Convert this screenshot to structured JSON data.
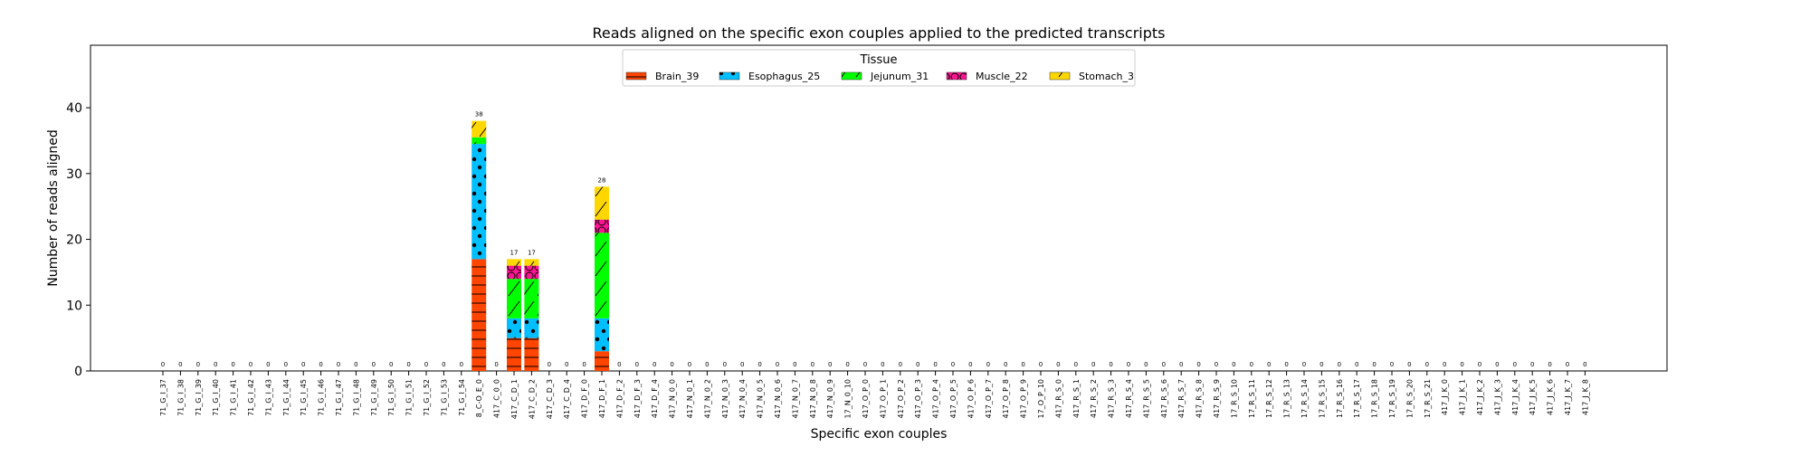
{
  "chart_data": {
    "type": "bar",
    "stacked": true,
    "title": "Reads aligned on the specific exon couples applied to the predicted transcripts",
    "xlabel": "Specific exon couples",
    "ylabel": "Number of reads aligned",
    "ylim": [
      0,
      49.5
    ],
    "yticks": [
      0,
      10,
      20,
      30,
      40
    ],
    "legend": {
      "title": "Tissue",
      "placement": "top-center"
    },
    "categories": [
      "71_G_I_37",
      "71_G_I_38",
      "71_G_I_39",
      "71_G_I_40",
      "71_G_I_41",
      "71_G_I_42",
      "71_G_I_43",
      "71_G_I_44",
      "71_G_I_45",
      "71_G_I_46",
      "71_G_I_47",
      "71_G_I_48",
      "71_G_I_49",
      "71_G_I_50",
      "71_G_I_51",
      "71_G_I_52",
      "71_G_I_53",
      "71_G_I_54",
      "8_C-O_E_0",
      "417_C_0_0",
      "417_C_D_1",
      "417_C_D_2",
      "417_C_D_3",
      "417_C_D_4",
      "417_D_F_0",
      "417_D_F_1",
      "417_D_F_2",
      "417_D_F_3",
      "417_D_F_4",
      "417_N_0_0",
      "417_N_0_1",
      "417_N_0_2",
      "417_N_0_3",
      "417_N_0_4",
      "417_N_0_5",
      "417_N_0_6",
      "417_N_0_7",
      "417_N_0_8",
      "417_N_0_9",
      "17_N_0_10",
      "417_O_P_0",
      "417_O_P_1",
      "417_O_P_2",
      "417_O_P_3",
      "417_O_P_4",
      "417_O_P_5",
      "417_O_P_6",
      "417_O_P_7",
      "417_O_P_8",
      "417_O_P_9",
      "17_O_P_10",
      "417_R_S_0",
      "417_R_S_1",
      "417_R_S_2",
      "417_R_S_3",
      "417_R_S_4",
      "417_R_S_5",
      "417_R_S_6",
      "417_R_S_7",
      "417_R_S_8",
      "417_R_S_9",
      "17_R_S_10",
      "17_R_S_11",
      "17_R_S_12",
      "17_R_S_13",
      "17_R_S_14",
      "17_R_S_15",
      "17_R_S_16",
      "17_R_S_17",
      "17_R_S_18",
      "17_R_S_19",
      "17_R_S_20",
      "17_R_S_21",
      "417_J_K_0",
      "417_J_K_1",
      "417_J_K_2",
      "417_J_K_3",
      "417_J_K_4",
      "417_J_K_5",
      "417_J_K_6",
      "417_J_K_7",
      "417_J_K_8"
    ],
    "totals": [
      0,
      0,
      0,
      0,
      0,
      0,
      0,
      0,
      0,
      0,
      0,
      0,
      0,
      0,
      0,
      0,
      0,
      0,
      38,
      0,
      17,
      17,
      0,
      0,
      0,
      28,
      0,
      0,
      0,
      0,
      0,
      0,
      0,
      0,
      0,
      0,
      0,
      0,
      0,
      0,
      0,
      0,
      0,
      0,
      0,
      0,
      0,
      0,
      0,
      0,
      0,
      0,
      0,
      0,
      0,
      0,
      0,
      0,
      0,
      0,
      0,
      0,
      0,
      0,
      0,
      0,
      0,
      0,
      0,
      0,
      0,
      0,
      0,
      0,
      0,
      0,
      0,
      0,
      0,
      0,
      0,
      0
    ],
    "series": [
      {
        "name": "Brain_39",
        "color": "#ff4500",
        "pattern": "horizontal-lines",
        "values": [
          0,
          0,
          0,
          0,
          0,
          0,
          0,
          0,
          0,
          0,
          0,
          0,
          0,
          0,
          0,
          0,
          0,
          0,
          17,
          0,
          5,
          5,
          0,
          0,
          0,
          3,
          0,
          0,
          0,
          0,
          0,
          0,
          0,
          0,
          0,
          0,
          0,
          0,
          0,
          0,
          0,
          0,
          0,
          0,
          0,
          0,
          0,
          0,
          0,
          0,
          0,
          0,
          0,
          0,
          0,
          0,
          0,
          0,
          0,
          0,
          0,
          0,
          0,
          0,
          0,
          0,
          0,
          0,
          0,
          0,
          0,
          0,
          0,
          0,
          0,
          0,
          0,
          0,
          0,
          0,
          0,
          0
        ]
      },
      {
        "name": "Esophagus_25",
        "color": "#00bfff",
        "pattern": "dots",
        "values": [
          0,
          0,
          0,
          0,
          0,
          0,
          0,
          0,
          0,
          0,
          0,
          0,
          0,
          0,
          0,
          0,
          0,
          0,
          17.5,
          0,
          3,
          3,
          0,
          0,
          0,
          5,
          0,
          0,
          0,
          0,
          0,
          0,
          0,
          0,
          0,
          0,
          0,
          0,
          0,
          0,
          0,
          0,
          0,
          0,
          0,
          0,
          0,
          0,
          0,
          0,
          0,
          0,
          0,
          0,
          0,
          0,
          0,
          0,
          0,
          0,
          0,
          0,
          0,
          0,
          0,
          0,
          0,
          0,
          0,
          0,
          0,
          0,
          0,
          0,
          0,
          0,
          0,
          0,
          0,
          0,
          0,
          0
        ]
      },
      {
        "name": "Jejunum_31",
        "color": "#00ff00",
        "pattern": "diagonal",
        "values": [
          0,
          0,
          0,
          0,
          0,
          0,
          0,
          0,
          0,
          0,
          0,
          0,
          0,
          0,
          0,
          0,
          0,
          0,
          1,
          0,
          6,
          6,
          0,
          0,
          0,
          13,
          0,
          0,
          0,
          0,
          0,
          0,
          0,
          0,
          0,
          0,
          0,
          0,
          0,
          0,
          0,
          0,
          0,
          0,
          0,
          0,
          0,
          0,
          0,
          0,
          0,
          0,
          0,
          0,
          0,
          0,
          0,
          0,
          0,
          0,
          0,
          0,
          0,
          0,
          0,
          0,
          0,
          0,
          0,
          0,
          0,
          0,
          0,
          0,
          0,
          0,
          0,
          0,
          0,
          0,
          0,
          0
        ]
      },
      {
        "name": "Muscle_22",
        "color": "#ff1493",
        "pattern": "circles",
        "values": [
          0,
          0,
          0,
          0,
          0,
          0,
          0,
          0,
          0,
          0,
          0,
          0,
          0,
          0,
          0,
          0,
          0,
          0,
          0,
          0,
          2,
          2,
          0,
          0,
          0,
          2,
          0,
          0,
          0,
          0,
          0,
          0,
          0,
          0,
          0,
          0,
          0,
          0,
          0,
          0,
          0,
          0,
          0,
          0,
          0,
          0,
          0,
          0,
          0,
          0,
          0,
          0,
          0,
          0,
          0,
          0,
          0,
          0,
          0,
          0,
          0,
          0,
          0,
          0,
          0,
          0,
          0,
          0,
          0,
          0,
          0,
          0,
          0,
          0,
          0,
          0,
          0,
          0,
          0,
          0,
          0,
          0
        ]
      },
      {
        "name": "Stomach_3",
        "color": "#ffd700",
        "pattern": "diagonal",
        "values": [
          0,
          0,
          0,
          0,
          0,
          0,
          0,
          0,
          0,
          0,
          0,
          0,
          0,
          0,
          0,
          0,
          0,
          0,
          2.5,
          0,
          1,
          1,
          0,
          0,
          0,
          5,
          0,
          0,
          0,
          0,
          0,
          0,
          0,
          0,
          0,
          0,
          0,
          0,
          0,
          0,
          0,
          0,
          0,
          0,
          0,
          0,
          0,
          0,
          0,
          0,
          0,
          0,
          0,
          0,
          0,
          0,
          0,
          0,
          0,
          0,
          0,
          0,
          0,
          0,
          0,
          0,
          0,
          0,
          0,
          0,
          0,
          0,
          0,
          0,
          0,
          0,
          0,
          0,
          0,
          0,
          0,
          0
        ]
      }
    ]
  }
}
